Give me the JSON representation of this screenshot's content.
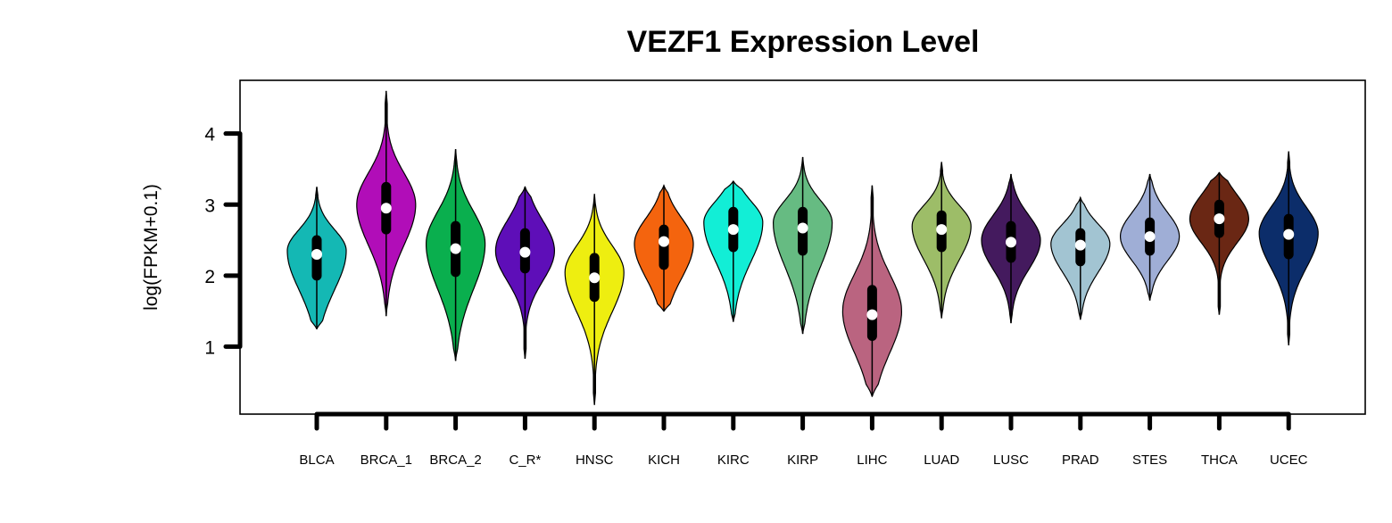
{
  "chart_data": {
    "type": "violin",
    "title": "VEZF1 Expression Level",
    "xlabel": "",
    "ylabel": "log(FPKM+0.1)",
    "ylim": [
      0.05,
      4.75
    ],
    "yticks": [
      1,
      2,
      3,
      4
    ],
    "grid": false,
    "legend": "none",
    "categories": [
      "BLCA",
      "BRCA_1",
      "BRCA_2",
      "C_R*",
      "HNSC",
      "KICH",
      "KIRC",
      "KIRP",
      "LIHC",
      "LUAD",
      "LUSC",
      "PRAD",
      "STES",
      "THCA",
      "UCEC"
    ],
    "series": [
      {
        "category": "BLCA",
        "color": "#14B8B4",
        "min": 1.25,
        "q1": 2.0,
        "median": 2.3,
        "q3": 2.5,
        "max": 3.25,
        "mode": 2.35
      },
      {
        "category": "BRCA_1",
        "color": "#B10DB8",
        "min": 1.43,
        "q1": 2.65,
        "median": 2.95,
        "q3": 3.25,
        "max": 4.6,
        "mode": 3.0
      },
      {
        "category": "BRCA_2",
        "color": "#0AAF4E",
        "min": 0.8,
        "q1": 2.05,
        "median": 2.38,
        "q3": 2.7,
        "max": 3.78,
        "mode": 2.45
      },
      {
        "category": "C_R*",
        "color": "#5E0EB8",
        "min": 0.83,
        "q1": 2.1,
        "median": 2.33,
        "q3": 2.6,
        "max": 3.25,
        "mode": 2.35
      },
      {
        "category": "HNSC",
        "color": "#EEEE10",
        "min": 0.18,
        "q1": 1.7,
        "median": 1.97,
        "q3": 2.25,
        "max": 3.15,
        "mode": 2.05
      },
      {
        "category": "KICH",
        "color": "#F4640E",
        "min": 1.5,
        "q1": 2.15,
        "median": 2.48,
        "q3": 2.65,
        "max": 3.27,
        "mode": 2.45
      },
      {
        "category": "KIRC",
        "color": "#12EED6",
        "min": 1.35,
        "q1": 2.4,
        "median": 2.65,
        "q3": 2.9,
        "max": 3.33,
        "mode": 2.75
      },
      {
        "category": "KIRP",
        "color": "#66BB82",
        "min": 1.18,
        "q1": 2.35,
        "median": 2.67,
        "q3": 2.9,
        "max": 3.67,
        "mode": 2.75
      },
      {
        "category": "LIHC",
        "color": "#BA6480",
        "min": 0.3,
        "q1": 1.15,
        "median": 1.45,
        "q3": 1.8,
        "max": 3.27,
        "mode": 1.5
      },
      {
        "category": "LUAD",
        "color": "#9DBD68",
        "min": 1.4,
        "q1": 2.4,
        "median": 2.65,
        "q3": 2.85,
        "max": 3.6,
        "mode": 2.7
      },
      {
        "category": "LUSC",
        "color": "#441A5E",
        "min": 1.33,
        "q1": 2.25,
        "median": 2.47,
        "q3": 2.7,
        "max": 3.43,
        "mode": 2.5
      },
      {
        "category": "PRAD",
        "color": "#A2C4D2",
        "min": 1.38,
        "q1": 2.2,
        "median": 2.43,
        "q3": 2.6,
        "max": 3.1,
        "mode": 2.45
      },
      {
        "category": "STES",
        "color": "#9FAED6",
        "min": 1.65,
        "q1": 2.35,
        "median": 2.55,
        "q3": 2.75,
        "max": 3.43,
        "mode": 2.55
      },
      {
        "category": "THCA",
        "color": "#6A2714",
        "min": 1.45,
        "q1": 2.6,
        "median": 2.8,
        "q3": 3.0,
        "max": 3.45,
        "mode": 2.8
      },
      {
        "category": "UCEC",
        "color": "#0C2D6A",
        "min": 1.02,
        "q1": 2.3,
        "median": 2.58,
        "q3": 2.8,
        "max": 3.75,
        "mode": 2.6
      }
    ]
  }
}
